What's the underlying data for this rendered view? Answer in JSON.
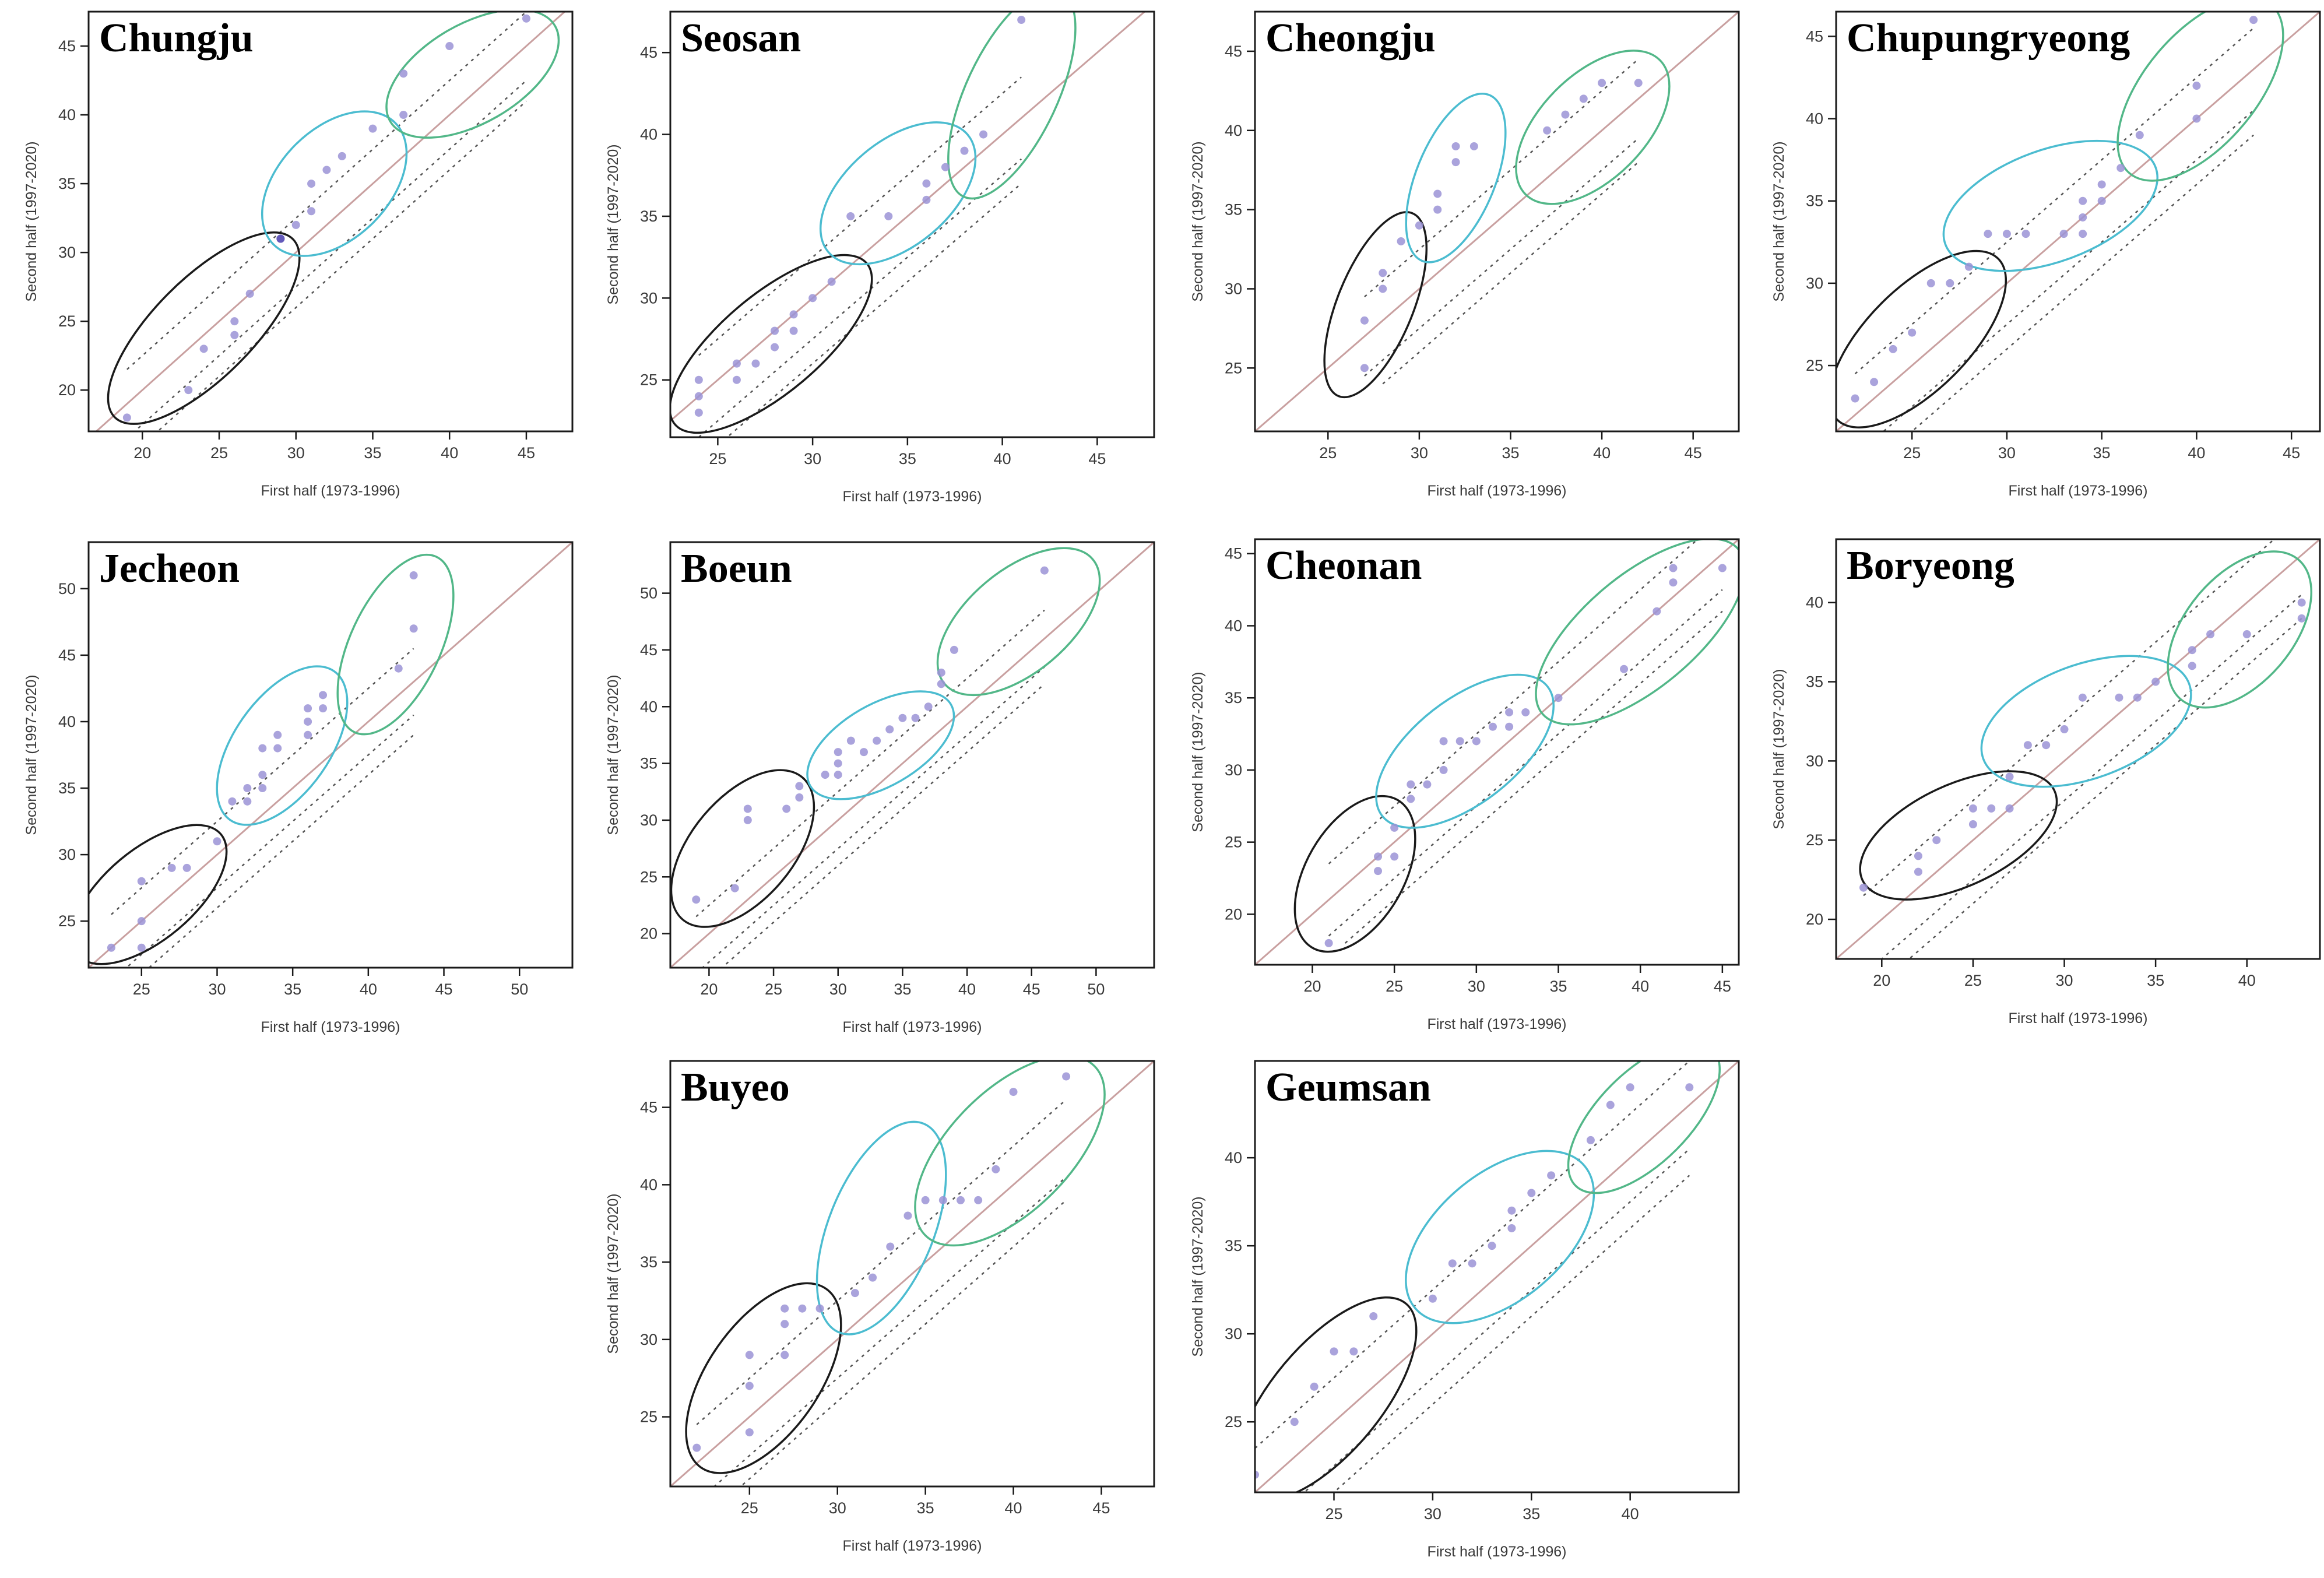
{
  "colors": {
    "background": "#ffffff",
    "frame": "#1a1a1a",
    "tick_text": "#3a3a3a",
    "point": "#9b93d6",
    "point_dark": "#5f56b8",
    "identity_line": "#c9a0a0",
    "confidence_line": "#555555",
    "ellipse_low": "#1a1a1a",
    "ellipse_mid": "#4bbcd0",
    "ellipse_high": "#52b788"
  },
  "chart_data": [
    {
      "type": "scatter",
      "title": "Chungju",
      "xlabel": "First half (1973-1996)",
      "ylabel": "Second half (1997-2020)",
      "xlim": [
        16.5,
        48
      ],
      "ylim": [
        17,
        47.5
      ],
      "xticks": [
        20,
        25,
        30,
        35,
        40,
        45
      ],
      "yticks": [
        20,
        25,
        30,
        35,
        40,
        45
      ],
      "band_offset": 2.5,
      "points": [
        [
          19,
          18
        ],
        [
          23,
          20
        ],
        [
          24,
          23
        ],
        [
          26,
          24
        ],
        [
          26,
          25
        ],
        [
          27,
          27
        ],
        [
          29,
          31
        ],
        [
          29,
          31
        ],
        [
          30,
          32
        ],
        [
          31,
          33
        ],
        [
          31,
          35
        ],
        [
          32,
          36
        ],
        [
          33,
          37
        ],
        [
          35,
          39
        ],
        [
          37,
          40
        ],
        [
          37,
          43
        ],
        [
          40,
          45
        ],
        [
          45,
          47
        ]
      ],
      "ellipses": [
        {
          "group": "low",
          "cx": 24,
          "cy": 24.5,
          "rx": 8.2,
          "ry": 3.6,
          "angle": 45
        },
        {
          "group": "mid",
          "cx": 32.5,
          "cy": 35,
          "rx": 5.6,
          "ry": 4,
          "angle": 45
        },
        {
          "group": "high",
          "cx": 41.5,
          "cy": 43,
          "rx": 6.2,
          "ry": 3.6,
          "angle": 30
        }
      ]
    },
    {
      "type": "scatter",
      "title": "Seosan",
      "xlabel": "First half (1973-1996)",
      "ylabel": "Second half (1997-2020)",
      "xlim": [
        22.5,
        48
      ],
      "ylim": [
        21.5,
        47.5
      ],
      "xticks": [
        25,
        30,
        35,
        40,
        45
      ],
      "yticks": [
        25,
        30,
        35,
        40,
        45
      ],
      "band_offset": 2.5,
      "points": [
        [
          24,
          23
        ],
        [
          24,
          24
        ],
        [
          24,
          25
        ],
        [
          26,
          25
        ],
        [
          26,
          26
        ],
        [
          27,
          26
        ],
        [
          28,
          27
        ],
        [
          28,
          28
        ],
        [
          29,
          28
        ],
        [
          29,
          29
        ],
        [
          30,
          30
        ],
        [
          31,
          31
        ],
        [
          32,
          35
        ],
        [
          34,
          35
        ],
        [
          36,
          36
        ],
        [
          36,
          37
        ],
        [
          37,
          38
        ],
        [
          38,
          39
        ],
        [
          39,
          40
        ],
        [
          41,
          47
        ]
      ],
      "ellipses": [
        {
          "group": "low",
          "cx": 27.8,
          "cy": 27.2,
          "rx": 6.6,
          "ry": 3,
          "angle": 40
        },
        {
          "group": "mid",
          "cx": 34.5,
          "cy": 36.4,
          "rx": 4.8,
          "ry": 3.2,
          "angle": 40
        },
        {
          "group": "high",
          "cx": 40.5,
          "cy": 42.5,
          "rx": 6,
          "ry": 2.8,
          "angle": 65
        }
      ]
    },
    {
      "type": "scatter",
      "title": "Cheongju",
      "xlabel": "First half (1973-1996)",
      "ylabel": "Second half (1997-2020)",
      "xlim": [
        21,
        47.5
      ],
      "ylim": [
        21,
        47.5
      ],
      "xticks": [
        25,
        30,
        35,
        40,
        45
      ],
      "yticks": [
        25,
        30,
        35,
        40,
        45
      ],
      "band_offset": 2.5,
      "points": [
        [
          27,
          25
        ],
        [
          27,
          28
        ],
        [
          28,
          30
        ],
        [
          28,
          31
        ],
        [
          29,
          33
        ],
        [
          30,
          34
        ],
        [
          31,
          35
        ],
        [
          31,
          36
        ],
        [
          32,
          38
        ],
        [
          32,
          39
        ],
        [
          33,
          39
        ],
        [
          37,
          40
        ],
        [
          38,
          41
        ],
        [
          39,
          42
        ],
        [
          40,
          43
        ],
        [
          42,
          43
        ]
      ],
      "ellipses": [
        {
          "group": "low",
          "cx": 27.6,
          "cy": 29,
          "rx": 5.4,
          "ry": 2.4,
          "angle": 68
        },
        {
          "group": "mid",
          "cx": 32,
          "cy": 37,
          "rx": 4.9,
          "ry": 2.5,
          "angle": 68
        },
        {
          "group": "high",
          "cx": 39.5,
          "cy": 40.2,
          "rx": 5.2,
          "ry": 3.3,
          "angle": 45
        }
      ]
    },
    {
      "type": "scatter",
      "title": "Chupungryeong",
      "xlabel": "First half (1973-1996)",
      "ylabel": "Second half (1997-2020)",
      "xlim": [
        21,
        46.5
      ],
      "ylim": [
        21,
        46.5
      ],
      "xticks": [
        25,
        30,
        35,
        40,
        45
      ],
      "yticks": [
        25,
        30,
        35,
        40,
        45
      ],
      "band_offset": 2.5,
      "points": [
        [
          22,
          23
        ],
        [
          23,
          24
        ],
        [
          24,
          26
        ],
        [
          25,
          27
        ],
        [
          26,
          30
        ],
        [
          27,
          30
        ],
        [
          28,
          31
        ],
        [
          29,
          33
        ],
        [
          30,
          33
        ],
        [
          31,
          33
        ],
        [
          33,
          33
        ],
        [
          34,
          33
        ],
        [
          34,
          34
        ],
        [
          34,
          35
        ],
        [
          35,
          35
        ],
        [
          35,
          36
        ],
        [
          36,
          37
        ],
        [
          37,
          39
        ],
        [
          40,
          40
        ],
        [
          40,
          42
        ],
        [
          43,
          46
        ]
      ],
      "ellipses": [
        {
          "group": "low",
          "cx": 25.3,
          "cy": 26.6,
          "rx": 6,
          "ry": 3.1,
          "angle": 45
        },
        {
          "group": "mid",
          "cx": 32.3,
          "cy": 34.7,
          "rx": 5.9,
          "ry": 3.4,
          "angle": 20
        },
        {
          "group": "high",
          "cx": 40.2,
          "cy": 41.8,
          "rx": 5.8,
          "ry": 3.4,
          "angle": 50
        }
      ]
    },
    {
      "type": "scatter",
      "title": "Jecheon",
      "xlabel": "First half (1973-1996)",
      "ylabel": "Second half (1997-2020)",
      "xlim": [
        21.5,
        53.5
      ],
      "ylim": [
        21.5,
        53.5
      ],
      "xticks": [
        25,
        30,
        35,
        40,
        45,
        50
      ],
      "yticks": [
        25,
        30,
        35,
        40,
        45,
        50
      ],
      "band_offset": 2.5,
      "points": [
        [
          23,
          23
        ],
        [
          25,
          23
        ],
        [
          25,
          25
        ],
        [
          25,
          28
        ],
        [
          27,
          29
        ],
        [
          28,
          29
        ],
        [
          30,
          31
        ],
        [
          31,
          34
        ],
        [
          32,
          34
        ],
        [
          32,
          35
        ],
        [
          33,
          35
        ],
        [
          33,
          36
        ],
        [
          33,
          38
        ],
        [
          34,
          38
        ],
        [
          34,
          39
        ],
        [
          36,
          39
        ],
        [
          36,
          40
        ],
        [
          36,
          41
        ],
        [
          37,
          41
        ],
        [
          37,
          42
        ],
        [
          42,
          44
        ],
        [
          43,
          47
        ],
        [
          43,
          51
        ]
      ],
      "ellipses": [
        {
          "group": "low",
          "cx": 25.5,
          "cy": 27,
          "rx": 6.2,
          "ry": 3.4,
          "angle": 40
        },
        {
          "group": "mid",
          "cx": 34.3,
          "cy": 38.2,
          "rx": 6,
          "ry": 3.6,
          "angle": 55
        },
        {
          "group": "high",
          "cx": 41.8,
          "cy": 45.8,
          "rx": 6.4,
          "ry": 3.4,
          "angle": 65
        }
      ]
    },
    {
      "type": "scatter",
      "title": "Boeun",
      "xlabel": "First half (1973-1996)",
      "ylabel": "Second half (1997-2020)",
      "xlim": [
        17,
        54.5
      ],
      "ylim": [
        17,
        54.5
      ],
      "xticks": [
        20,
        25,
        30,
        35,
        40,
        45,
        50
      ],
      "yticks": [
        20,
        25,
        30,
        35,
        40,
        45,
        50
      ],
      "band_offset": 2.5,
      "points": [
        [
          19,
          23
        ],
        [
          22,
          24
        ],
        [
          23,
          30
        ],
        [
          23,
          31
        ],
        [
          26,
          31
        ],
        [
          27,
          32
        ],
        [
          27,
          33
        ],
        [
          29,
          34
        ],
        [
          30,
          34
        ],
        [
          30,
          35
        ],
        [
          30,
          36
        ],
        [
          31,
          37
        ],
        [
          32,
          36
        ],
        [
          33,
          37
        ],
        [
          34,
          38
        ],
        [
          35,
          39
        ],
        [
          36,
          39
        ],
        [
          37,
          40
        ],
        [
          38,
          42
        ],
        [
          38,
          43
        ],
        [
          39,
          45
        ],
        [
          46,
          52
        ]
      ],
      "ellipses": [
        {
          "group": "low",
          "cx": 22.6,
          "cy": 27.5,
          "rx": 7.2,
          "ry": 4.5,
          "angle": 50
        },
        {
          "group": "mid",
          "cx": 33.3,
          "cy": 36.6,
          "rx": 6.3,
          "ry": 3.6,
          "angle": 30
        },
        {
          "group": "high",
          "cx": 44,
          "cy": 47.5,
          "rx": 7.5,
          "ry": 4.5,
          "angle": 40
        }
      ]
    },
    {
      "type": "scatter",
      "title": "Cheonan",
      "xlabel": "First half (1973-1996)",
      "ylabel": "Second half (1997-2020)",
      "xlim": [
        16.5,
        46
      ],
      "ylim": [
        16.5,
        46
      ],
      "xticks": [
        20,
        25,
        30,
        35,
        40,
        45
      ],
      "yticks": [
        20,
        25,
        30,
        35,
        40,
        45
      ],
      "band_offset": 2.5,
      "points": [
        [
          21,
          18
        ],
        [
          24,
          23
        ],
        [
          24,
          24
        ],
        [
          25,
          24
        ],
        [
          25,
          26
        ],
        [
          26,
          28
        ],
        [
          26,
          29
        ],
        [
          27,
          29
        ],
        [
          28,
          30
        ],
        [
          28,
          32
        ],
        [
          29,
          32
        ],
        [
          30,
          32
        ],
        [
          31,
          33
        ],
        [
          32,
          33
        ],
        [
          32,
          34
        ],
        [
          33,
          34
        ],
        [
          35,
          35
        ],
        [
          39,
          37
        ],
        [
          41,
          41
        ],
        [
          42,
          43
        ],
        [
          42,
          44
        ],
        [
          45,
          44
        ]
      ],
      "ellipses": [
        {
          "group": "low",
          "cx": 22.6,
          "cy": 22.8,
          "rx": 5.2,
          "ry": 3.4,
          "angle": 60
        },
        {
          "group": "mid",
          "cx": 29.3,
          "cy": 31.3,
          "rx": 6.4,
          "ry": 3.6,
          "angle": 38
        },
        {
          "group": "high",
          "cx": 40,
          "cy": 39.6,
          "rx": 7.8,
          "ry": 3.9,
          "angle": 40
        }
      ]
    },
    {
      "type": "scatter",
      "title": "Boryeong",
      "xlabel": "First half (1973-1996)",
      "ylabel": "Second half (1997-2020)",
      "xlim": [
        17.5,
        44
      ],
      "ylim": [
        17.5,
        44
      ],
      "xticks": [
        20,
        25,
        30,
        35,
        40
      ],
      "yticks": [
        20,
        25,
        30,
        35,
        40
      ],
      "band_offset": 2.5,
      "points": [
        [
          19,
          22
        ],
        [
          22,
          23
        ],
        [
          22,
          24
        ],
        [
          23,
          25
        ],
        [
          25,
          26
        ],
        [
          25,
          27
        ],
        [
          26,
          27
        ],
        [
          27,
          27
        ],
        [
          27,
          29
        ],
        [
          28,
          31
        ],
        [
          29,
          31
        ],
        [
          30,
          32
        ],
        [
          31,
          34
        ],
        [
          33,
          34
        ],
        [
          34,
          34
        ],
        [
          35,
          35
        ],
        [
          37,
          36
        ],
        [
          37,
          37
        ],
        [
          38,
          38
        ],
        [
          40,
          38
        ],
        [
          43,
          39
        ],
        [
          43,
          40
        ]
      ],
      "ellipses": [
        {
          "group": "low",
          "cx": 24.2,
          "cy": 25.3,
          "rx": 5.8,
          "ry": 3.2,
          "angle": 25
        },
        {
          "group": "mid",
          "cx": 31.2,
          "cy": 32.5,
          "rx": 6,
          "ry": 3.6,
          "angle": 20
        },
        {
          "group": "high",
          "cx": 39.6,
          "cy": 38.3,
          "rx": 5,
          "ry": 3.4,
          "angle": 50
        }
      ]
    },
    {
      "type": "scatter",
      "title": "Buyeo",
      "xlabel": "First half (1973-1996)",
      "ylabel": "Second half (1997-2020)",
      "xlim": [
        20.5,
        48
      ],
      "ylim": [
        20.5,
        48
      ],
      "xticks": [
        25,
        30,
        35,
        40,
        45
      ],
      "yticks": [
        25,
        30,
        35,
        40,
        45
      ],
      "band_offset": 2.5,
      "points": [
        [
          22,
          23
        ],
        [
          25,
          24
        ],
        [
          25,
          27
        ],
        [
          25,
          29
        ],
        [
          27,
          29
        ],
        [
          27,
          31
        ],
        [
          27,
          32
        ],
        [
          28,
          32
        ],
        [
          29,
          32
        ],
        [
          31,
          33
        ],
        [
          32,
          34
        ],
        [
          33,
          36
        ],
        [
          34,
          38
        ],
        [
          35,
          39
        ],
        [
          36,
          39
        ],
        [
          37,
          39
        ],
        [
          38,
          39
        ],
        [
          39,
          41
        ],
        [
          40,
          46
        ],
        [
          43,
          47
        ]
      ],
      "ellipses": [
        {
          "group": "low",
          "cx": 25.8,
          "cy": 27.5,
          "rx": 6.2,
          "ry": 3.6,
          "angle": 55
        },
        {
          "group": "mid",
          "cx": 32.5,
          "cy": 37.2,
          "rx": 6.4,
          "ry": 3.4,
          "angle": 68
        },
        {
          "group": "high",
          "cx": 39.8,
          "cy": 42.2,
          "rx": 6.8,
          "ry": 3.9,
          "angle": 45
        }
      ]
    },
    {
      "type": "scatter",
      "title": "Geumsan",
      "xlabel": "First half (1973-1996)",
      "ylabel": "Second half (1997-2020)",
      "xlim": [
        21,
        45.5
      ],
      "ylim": [
        21,
        45.5
      ],
      "xticks": [
        25,
        30,
        35,
        40
      ],
      "yticks": [
        25,
        30,
        35,
        40
      ],
      "band_offset": 2.5,
      "points": [
        [
          21,
          22
        ],
        [
          23,
          25
        ],
        [
          24,
          27
        ],
        [
          25,
          29
        ],
        [
          26,
          29
        ],
        [
          27,
          31
        ],
        [
          30,
          32
        ],
        [
          31,
          34
        ],
        [
          32,
          34
        ],
        [
          33,
          35
        ],
        [
          34,
          36
        ],
        [
          34,
          37
        ],
        [
          35,
          38
        ],
        [
          36,
          39
        ],
        [
          38,
          41
        ],
        [
          39,
          43
        ],
        [
          40,
          44
        ],
        [
          43,
          44
        ]
      ],
      "ellipses": [
        {
          "group": "low",
          "cx": 24.6,
          "cy": 26.3,
          "rx": 6.3,
          "ry": 3.1,
          "angle": 50
        },
        {
          "group": "mid",
          "cx": 33.4,
          "cy": 35.5,
          "rx": 5.6,
          "ry": 3.6,
          "angle": 40
        },
        {
          "group": "high",
          "cx": 40.7,
          "cy": 42.3,
          "rx": 4.9,
          "ry": 2.6,
          "angle": 45
        }
      ]
    }
  ]
}
